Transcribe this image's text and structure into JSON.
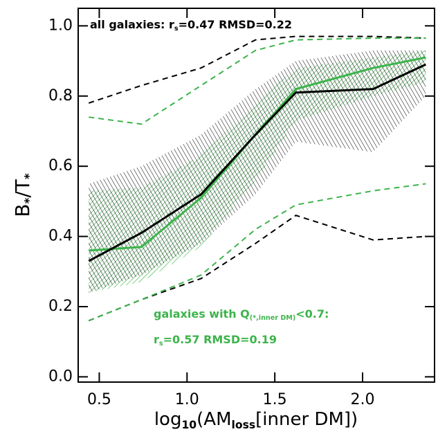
{
  "chart_data": {
    "type": "line",
    "x": [
      0.44,
      0.74,
      1.08,
      1.39,
      1.62,
      2.06,
      2.36
    ],
    "xlim": [
      0.38,
      2.41
    ],
    "ylim": [
      -0.015,
      1.05
    ],
    "xticks": [
      {
        "value": 0.5,
        "label": "0.5"
      },
      {
        "value": 1.0,
        "label": "1.0"
      },
      {
        "value": 1.5,
        "label": "1.5"
      },
      {
        "value": 2.0,
        "label": "2.0"
      }
    ],
    "yticks": [
      {
        "value": 0.0,
        "label": "0.0"
      },
      0.2,
      0.4,
      0.6,
      0.8,
      {
        "value": 1.0,
        "label": "1.0"
      }
    ],
    "xlabel": [
      {
        "text": "log"
      },
      {
        "text": "10",
        "sub": true
      },
      {
        "text": "(AM"
      },
      {
        "text": "loss",
        "sub": true
      },
      {
        "text": "[inner DM])"
      }
    ],
    "ylabel": [
      {
        "text": "B"
      },
      {
        "text": "*",
        "sub": true
      },
      {
        "text": "/T"
      },
      {
        "text": "*",
        "sub": true
      }
    ],
    "bands": [
      {
        "color": "#3cb44b",
        "hatch": "/",
        "lower": [
          0.24,
          0.27,
          0.37,
          0.56,
          0.73,
          0.8,
          0.84
        ],
        "upper": [
          0.53,
          0.54,
          0.63,
          0.78,
          0.88,
          0.91,
          0.93
        ]
      },
      {
        "color": "#000000",
        "hatch": "\\",
        "lower": [
          0.24,
          0.29,
          0.38,
          0.52,
          0.67,
          0.64,
          0.8
        ],
        "upper": [
          0.55,
          0.6,
          0.69,
          0.82,
          0.9,
          0.93,
          0.93
        ]
      }
    ],
    "lines": [
      {
        "color": "#000000",
        "dash": true,
        "values": [
          0.78,
          0.83,
          0.88,
          0.96,
          0.97,
          0.97,
          0.965
        ]
      },
      {
        "color": "#000000",
        "dash": true,
        "values": [
          0.16,
          0.22,
          0.28,
          0.38,
          0.46,
          0.39,
          0.4
        ]
      },
      {
        "color": "#3cb44b",
        "dash": true,
        "values": [
          0.74,
          0.72,
          0.83,
          0.93,
          0.96,
          0.965,
          0.965
        ]
      },
      {
        "color": "#3cb44b",
        "dash": true,
        "values": [
          0.16,
          0.22,
          0.29,
          0.42,
          0.49,
          0.53,
          0.55
        ]
      },
      {
        "color": "#3cb44b",
        "dash": false,
        "values": [
          0.36,
          0.37,
          0.51,
          0.69,
          0.82,
          0.88,
          0.91
        ]
      },
      {
        "color": "#000000",
        "dash": false,
        "values": [
          0.33,
          0.41,
          0.52,
          0.69,
          0.81,
          0.82,
          0.89
        ]
      }
    ],
    "annotations": [
      {
        "color": "#000000",
        "parts": [
          {
            "text": "all galaxies: r"
          },
          {
            "text": "s",
            "sub": true
          },
          {
            "text": "=0.47   RMSD=0.22"
          }
        ]
      },
      {
        "color": "#3cb44b",
        "parts": [
          {
            "text": "galaxies with Q"
          },
          {
            "text": "(*,inner DM)",
            "sub": true
          },
          {
            "text": "<0.7:"
          }
        ]
      },
      {
        "color": "#3cb44b",
        "parts": [
          {
            "text": "r"
          },
          {
            "text": "s",
            "sub": true
          },
          {
            "text": "=0.57   RMSD=0.19"
          }
        ]
      }
    ]
  }
}
